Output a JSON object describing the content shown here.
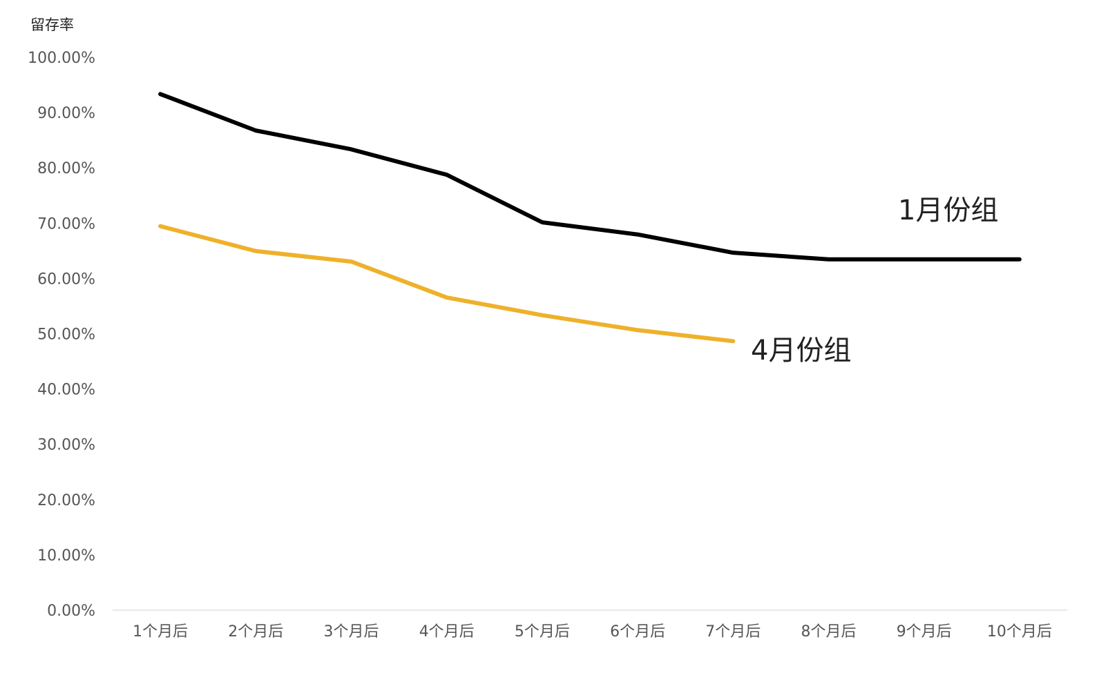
{
  "chart_data": {
    "type": "line",
    "y_label": "留存率",
    "categories": [
      "1个月后",
      "2个月后",
      "3个月后",
      "4个月后",
      "5个月后",
      "6个月后",
      "7个月后",
      "8个月后",
      "9个月后",
      "10个月后"
    ],
    "series": [
      {
        "name": "1月份组",
        "color": "#000000",
        "values": [
          93.6,
          87.0,
          83.6,
          79.0,
          70.4,
          68.2,
          64.9,
          63.7,
          63.7,
          63.7
        ]
      },
      {
        "name": "4月份组",
        "color": "#eeb12b",
        "values": [
          69.7,
          65.2,
          63.3,
          56.8,
          53.6,
          50.9,
          48.9,
          null,
          null,
          null
        ]
      }
    ],
    "ylim": [
      0,
      100
    ],
    "yticks": [
      {
        "value": 0,
        "label": "0.00%"
      },
      {
        "value": 10,
        "label": "10.00%"
      },
      {
        "value": 20,
        "label": "20.00%"
      },
      {
        "value": 30,
        "label": "30.00%"
      },
      {
        "value": 40,
        "label": "40.00%"
      },
      {
        "value": 50,
        "label": "50.00%"
      },
      {
        "value": 60,
        "label": "60.00%"
      },
      {
        "value": 70,
        "label": "70.00%"
      },
      {
        "value": 80,
        "label": "80.00%"
      },
      {
        "value": 90,
        "label": "90.00%"
      },
      {
        "value": 100,
        "label": "100.00%"
      }
    ],
    "grid": false
  }
}
